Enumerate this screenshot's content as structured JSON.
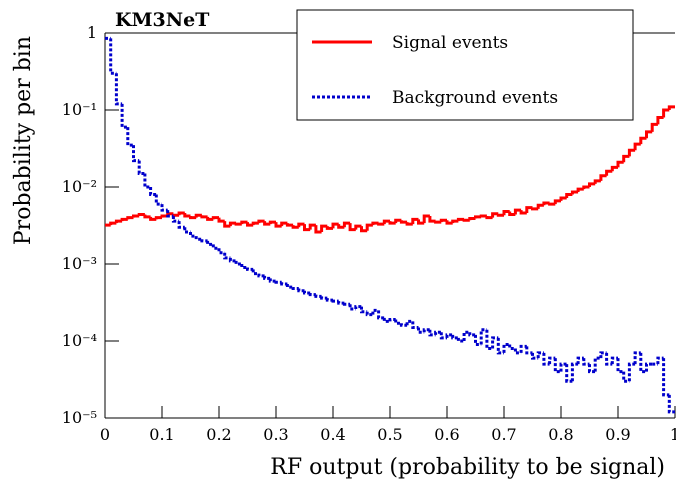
{
  "chart_data": {
    "type": "histogram",
    "title": "KM3NeT",
    "xlabel": "RF output (probability to be signal)",
    "ylabel": "Probability per bin",
    "log_y": true,
    "legend": "top-right",
    "bins": [
      0,
      0.01,
      0.02,
      0.03,
      0.04,
      0.05,
      0.06,
      0.07,
      0.08,
      0.09,
      0.1,
      0.11,
      0.12,
      0.13,
      0.14,
      0.15,
      0.16,
      0.17,
      0.18,
      0.19,
      0.2,
      0.21,
      0.22,
      0.23,
      0.24,
      0.25,
      0.26,
      0.27,
      0.28,
      0.29,
      0.3,
      0.31,
      0.32,
      0.33,
      0.34,
      0.35,
      0.36,
      0.37,
      0.38,
      0.39,
      0.4,
      0.41,
      0.42,
      0.43,
      0.44,
      0.45,
      0.46,
      0.47,
      0.48,
      0.49,
      0.5,
      0.51,
      0.52,
      0.53,
      0.54,
      0.55,
      0.56,
      0.57,
      0.58,
      0.59,
      0.6,
      0.61,
      0.62,
      0.63,
      0.64,
      0.65,
      0.66,
      0.67,
      0.68,
      0.69,
      0.7,
      0.71,
      0.72,
      0.73,
      0.74,
      0.75,
      0.76,
      0.77,
      0.78,
      0.79,
      0.8,
      0.81,
      0.82,
      0.83,
      0.84,
      0.85,
      0.86,
      0.87,
      0.88,
      0.89,
      0.9,
      0.91,
      0.92,
      0.93,
      0.94,
      0.95,
      0.96,
      0.97,
      0.98,
      0.99,
      1
    ],
    "series": [
      {
        "name": "Signal events",
        "color": "#ff0000",
        "dash": "solid",
        "values": [
          0.0032,
          0.0034,
          0.0036,
          0.0038,
          0.004,
          0.0042,
          0.0044,
          0.0041,
          0.0038,
          0.004,
          0.0042,
          0.0045,
          0.0043,
          0.0046,
          0.0042,
          0.004,
          0.0043,
          0.0041,
          0.0038,
          0.004,
          0.0036,
          0.0031,
          0.0034,
          0.0033,
          0.0035,
          0.0032,
          0.0034,
          0.0036,
          0.0033,
          0.0035,
          0.0031,
          0.0034,
          0.0032,
          0.003,
          0.0033,
          0.0028,
          0.0032,
          0.0026,
          0.0031,
          0.0029,
          0.0033,
          0.003,
          0.0034,
          0.0028,
          0.0031,
          0.0027,
          0.0032,
          0.0034,
          0.0033,
          0.0036,
          0.0034,
          0.0037,
          0.0035,
          0.0033,
          0.0038,
          0.0034,
          0.0042,
          0.0036,
          0.0035,
          0.0037,
          0.0034,
          0.0036,
          0.0038,
          0.0037,
          0.0039,
          0.0041,
          0.0042,
          0.004,
          0.0045,
          0.0043,
          0.0048,
          0.0044,
          0.005,
          0.0046,
          0.0054,
          0.0052,
          0.0058,
          0.0062,
          0.006,
          0.0066,
          0.0072,
          0.008,
          0.0086,
          0.0094,
          0.01,
          0.011,
          0.012,
          0.014,
          0.016,
          0.018,
          0.021,
          0.025,
          0.03,
          0.036,
          0.043,
          0.052,
          0.065,
          0.08,
          0.1,
          0.11
        ]
      },
      {
        "name": "Background events",
        "color": "#0000cc",
        "dash": "dotted",
        "values": [
          0.85,
          0.3,
          0.12,
          0.06,
          0.035,
          0.022,
          0.015,
          0.01,
          0.008,
          0.006,
          0.005,
          0.0042,
          0.0036,
          0.003,
          0.0026,
          0.0023,
          0.0021,
          0.002,
          0.0018,
          0.0016,
          0.0014,
          0.0012,
          0.0011,
          0.001,
          0.0009,
          0.00085,
          0.00075,
          0.0007,
          0.00065,
          0.0006,
          0.00058,
          0.00055,
          0.0005,
          0.00048,
          0.00045,
          0.00042,
          0.0004,
          0.00038,
          0.00036,
          0.00034,
          0.00033,
          0.00031,
          0.0003,
          0.00026,
          0.00028,
          0.00024,
          0.00022,
          0.00025,
          0.0002,
          0.00018,
          0.00019,
          0.00017,
          0.00016,
          0.00018,
          0.00015,
          0.00013,
          0.00014,
          0.00012,
          0.00013,
          0.00011,
          0.00012,
          0.00011,
          0.0001,
          0.00013,
          0.00012,
          9e-05,
          0.00014,
          8e-05,
          0.00011,
          7e-05,
          9e-05,
          8e-05,
          7e-05,
          8.5e-05,
          7e-05,
          6e-05,
          7e-05,
          5e-05,
          6e-05,
          4e-05,
          5e-05,
          3e-05,
          5e-05,
          6e-05,
          5e-05,
          4e-05,
          6e-05,
          7e-05,
          5e-05,
          6e-05,
          4e-05,
          3e-05,
          5e-05,
          7e-05,
          4e-05,
          5e-05,
          5e-05,
          6e-05,
          2e-05,
          1.2e-05
        ]
      }
    ],
    "xlim": [
      0,
      1
    ],
    "xticks": [
      0,
      0.1,
      0.2,
      0.3,
      0.4,
      0.5,
      0.6,
      0.7,
      0.8,
      0.9,
      1
    ],
    "ylim": [
      1e-05,
      1
    ],
    "yticks": [
      {
        "value": 1e-05,
        "label": "10⁻⁵"
      },
      {
        "value": 0.0001,
        "label": "10⁻⁴"
      },
      {
        "value": 0.001,
        "label": "10⁻³"
      },
      {
        "value": 0.01,
        "label": "10⁻²"
      },
      {
        "value": 0.1,
        "label": "10⁻¹"
      },
      1
    ]
  }
}
